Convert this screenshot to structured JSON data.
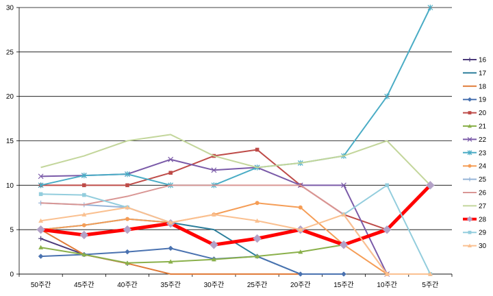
{
  "chart_data": {
    "type": "line",
    "categories": [
      "50주간",
      "45주간",
      "40주간",
      "35주간",
      "30주간",
      "25주간",
      "20주간",
      "15주간",
      "10주간",
      "5주간"
    ],
    "ylim": [
      0,
      30
    ],
    "yticks": [
      0,
      5,
      10,
      15,
      20,
      25,
      30
    ],
    "ytick_labels": [
      "0",
      "5",
      "10",
      "15",
      "20",
      "25",
      "30"
    ],
    "grid": "horizontal",
    "legend_position": "right",
    "series": [
      {
        "name": "16",
        "color": "#4b3a7a",
        "marker": "plus",
        "values": [
          4.0,
          2.2,
          1.2,
          null,
          null,
          null,
          null,
          null,
          null,
          null
        ]
      },
      {
        "name": "17",
        "color": "#2a7d9a",
        "marker": "none",
        "values": [
          5.0,
          5.5,
          6.2,
          5.8,
          5.0,
          2.0,
          0.0,
          0.0,
          null,
          null
        ]
      },
      {
        "name": "18",
        "color": "#e07b39",
        "marker": "none",
        "values": [
          5.0,
          2.2,
          1.2,
          0.0,
          0.0,
          0.0,
          0.0,
          null,
          null,
          null
        ]
      },
      {
        "name": "19",
        "color": "#4a72b0",
        "marker": "diamond",
        "values": [
          2.0,
          2.2,
          2.5,
          2.9,
          1.7,
          2.0,
          0.0,
          0.0,
          null,
          null
        ]
      },
      {
        "name": "20",
        "color": "#be4b48",
        "marker": "square",
        "values": [
          10.0,
          10.0,
          10.0,
          11.4,
          13.3,
          14.0,
          10.0,
          6.7,
          5.0,
          null
        ]
      },
      {
        "name": "21",
        "color": "#8ab04a",
        "marker": "triangle",
        "values": [
          3.0,
          2.2,
          1.25,
          1.4,
          1.65,
          2.0,
          2.5,
          3.3,
          null,
          null
        ]
      },
      {
        "name": "22",
        "color": "#7a5aa8",
        "marker": "x",
        "values": [
          11.0,
          11.1,
          11.25,
          12.9,
          11.7,
          12.0,
          10.0,
          10.0,
          0.0,
          null
        ]
      },
      {
        "name": "23",
        "color": "#4aacc5",
        "marker": "star",
        "values": [
          10.0,
          11.1,
          11.25,
          10.0,
          10.0,
          12.0,
          12.5,
          13.3,
          20.0,
          30.0
        ]
      },
      {
        "name": "24",
        "color": "#f59d56",
        "marker": "circle",
        "values": [
          5.0,
          5.5,
          6.2,
          5.8,
          6.7,
          8.0,
          7.5,
          3.3,
          0.0,
          0.0
        ]
      },
      {
        "name": "25",
        "color": "#95b3d7",
        "marker": "plus",
        "values": [
          8.0,
          7.8,
          7.5,
          5.8,
          null,
          null,
          null,
          null,
          null,
          null
        ]
      },
      {
        "name": "26",
        "color": "#d99694",
        "marker": "none",
        "values": [
          8.0,
          7.8,
          8.75,
          10.0,
          10.0,
          10.0,
          10.0,
          6.7,
          0.0,
          null
        ]
      },
      {
        "name": "27",
        "color": "#c3d69b",
        "marker": "none",
        "values": [
          12.0,
          13.3,
          15.0,
          15.7,
          13.3,
          12.0,
          12.5,
          13.3,
          15.0,
          10.0
        ]
      },
      {
        "name": "28",
        "color": "#ff0000",
        "marker": "diamond",
        "marker_color": "#b3a2c7",
        "bold": true,
        "values": [
          5.0,
          4.4,
          5.0,
          5.7,
          3.3,
          4.0,
          5.0,
          3.3,
          5.0,
          10.0
        ]
      },
      {
        "name": "29",
        "color": "#93cddd",
        "marker": "square",
        "values": [
          9.0,
          8.9,
          7.5,
          null,
          null,
          null,
          null,
          6.7,
          10.0,
          0.0
        ]
      },
      {
        "name": "30",
        "color": "#fac090",
        "marker": "triangle",
        "values": [
          6.0,
          6.7,
          7.5,
          5.8,
          6.7,
          6.0,
          5.0,
          6.7,
          0.0,
          0.0
        ]
      }
    ]
  }
}
